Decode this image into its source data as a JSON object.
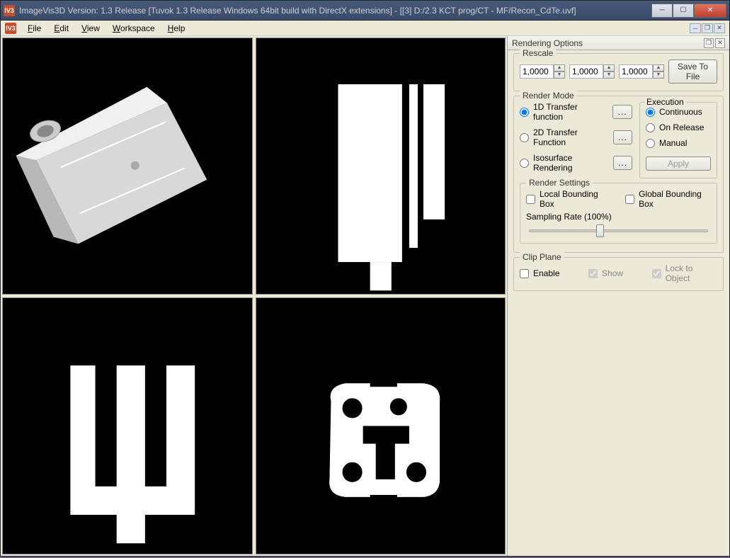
{
  "window": {
    "title": "ImageVis3D Version: 1.3 Release [Tuvok 1.3 Release Windows 64bit build with DirectX extensions] - [[3] D:/2.3 KCT prog/CT - MF/Recon_CdTe.uvf]",
    "icon_label": "IV3"
  },
  "menu": {
    "items": [
      "File",
      "Edit",
      "View",
      "Workspace",
      "Help"
    ]
  },
  "panel": {
    "title": "Rendering Options",
    "rescale": {
      "label": "Rescale",
      "x": "1,0000",
      "y": "1,0000",
      "z": "1,0000",
      "save_btn": "Save To File"
    },
    "render_mode": {
      "label": "Render Mode",
      "options": [
        "1D Transfer function",
        "2D Transfer Function",
        "Isosurface Rendering"
      ],
      "selected_index": 0,
      "dots": "...",
      "execution": {
        "label": "Execution",
        "options": [
          "Continuous",
          "On Release",
          "Manual"
        ],
        "selected_index": 0,
        "apply": "Apply"
      }
    },
    "render_settings": {
      "label": "Render Settings",
      "local_bb": "Local Bounding Box",
      "global_bb": "Global Bounding Box",
      "sampling_label": "Sampling Rate (100%)",
      "slider_percent": 38
    },
    "clip_plane": {
      "label": "Clip Plane",
      "enable": "Enable",
      "show": "Show",
      "lock": "Lock to Object"
    }
  },
  "colors": {
    "app_bg": "#ece9d8",
    "viewport_bg": "#000000",
    "shape_fill": "#ffffff",
    "volume_fill": "#d8d8d8"
  }
}
